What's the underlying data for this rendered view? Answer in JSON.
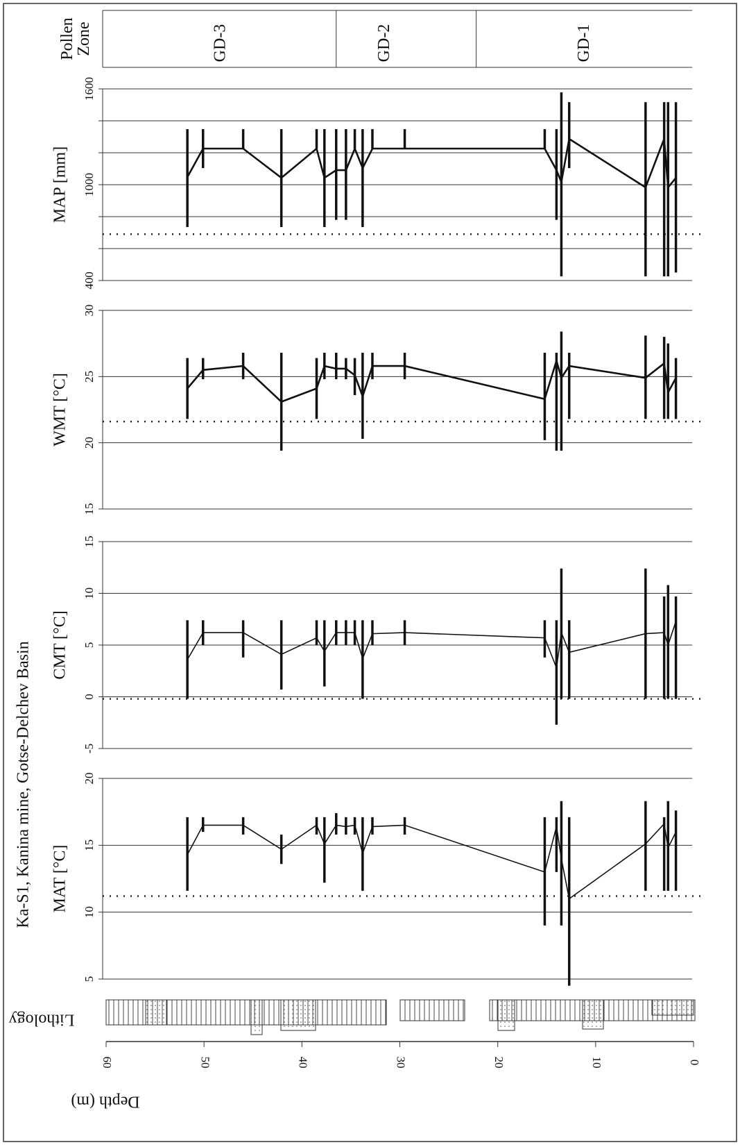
{
  "chart_data": {
    "type": "line",
    "title": "Ka-S1, Kanina mine, Gotse-Delchev Basin",
    "x_label": "Depth (m)",
    "xlim": [
      60,
      0
    ],
    "xticks": [
      60,
      50,
      40,
      30,
      20,
      10,
      0
    ],
    "zone_label": "Pollen Zone",
    "zones": [
      {
        "name": "GD-3",
        "from": 60,
        "to": 36.5
      },
      {
        "name": "GD-2",
        "from": 36.5,
        "to": 22.2
      },
      {
        "name": "GD-1",
        "from": 22.2,
        "to": 0
      }
    ],
    "lithology_label": "Lithology",
    "depth": [
      51.7,
      50.1,
      46.0,
      42.1,
      38.5,
      37.7,
      36.5,
      35.5,
      34.6,
      33.8,
      32.8,
      29.5,
      15.2,
      14.0,
      13.5,
      12.7,
      4.9,
      3.0,
      2.6,
      1.8
    ],
    "panels": [
      {
        "y_label": "MAP [mm]",
        "ylim": [
          400,
          1600
        ],
        "yticks": [
          400,
          1000,
          1600
        ],
        "minor_yticks": [
          600,
          800,
          1200,
          1400
        ],
        "threshold": 690,
        "line_width": 2.6,
        "values": [
          1048,
          1226,
          1226,
          1043,
          1226,
          1043,
          1091,
          1091,
          1226,
          1104,
          1226,
          1226,
          1226,
          1091,
          1017,
          1287,
          983,
          1287,
          983,
          1043
        ],
        "lower": [
          735,
          1104,
          1226,
          735,
          1226,
          735,
          780,
          780,
          1226,
          735,
          1226,
          1226,
          1226,
          780,
          426,
          1104,
          426,
          426,
          426,
          450
        ],
        "upper": [
          1348,
          1348,
          1348,
          1348,
          1348,
          1348,
          1348,
          1348,
          1348,
          1348,
          1348,
          1348,
          1348,
          1348,
          1578,
          1517,
          1517,
          1517,
          1517,
          1517
        ]
      },
      {
        "y_label": "WMT [°C]",
        "ylim": [
          15,
          30
        ],
        "yticks": [
          15,
          20,
          25,
          30
        ],
        "minor_yticks": [],
        "threshold": 21.6,
        "line_width": 2.6,
        "values": [
          24.1,
          25.5,
          25.8,
          23.1,
          24.1,
          25.8,
          25.6,
          25.6,
          25.1,
          23.5,
          25.8,
          25.8,
          23.3,
          26.2,
          24.9,
          25.8,
          24.9,
          26.0,
          23.8,
          24.9
        ],
        "lower": [
          21.8,
          24.8,
          24.8,
          19.4,
          21.8,
          24.8,
          24.8,
          24.8,
          23.6,
          20.3,
          24.8,
          24.8,
          20.2,
          19.4,
          19.4,
          21.8,
          21.8,
          21.8,
          21.8,
          21.8
        ],
        "upper": [
          26.4,
          26.4,
          26.8,
          26.8,
          26.4,
          26.8,
          26.8,
          26.4,
          26.4,
          26.8,
          26.8,
          26.8,
          26.8,
          26.8,
          28.4,
          26.8,
          28.1,
          28.0,
          27.5,
          26.4
        ]
      },
      {
        "y_label": "CMT [°C]",
        "ylim": [
          -5,
          15
        ],
        "yticks": [
          -5,
          0,
          5,
          10,
          15
        ],
        "minor_yticks": [],
        "threshold": -0.2,
        "line_width": 1.6,
        "values": [
          3.6,
          6.2,
          6.2,
          4.1,
          5.7,
          4.4,
          6.2,
          6.2,
          6.2,
          3.7,
          6.1,
          6.2,
          5.7,
          2.8,
          6.2,
          4.3,
          6.1,
          6.2,
          5.0,
          7.3
        ],
        "lower": [
          -0.2,
          5.0,
          3.8,
          0.7,
          5.0,
          1.0,
          5.0,
          5.0,
          5.0,
          -0.2,
          5.0,
          5.0,
          3.8,
          -2.7,
          -0.2,
          -0.2,
          -0.2,
          -0.2,
          -0.2,
          -0.2
        ],
        "upper": [
          7.4,
          7.4,
          7.4,
          7.4,
          7.4,
          7.4,
          7.4,
          7.4,
          7.4,
          7.4,
          7.4,
          7.4,
          7.4,
          7.4,
          12.4,
          7.4,
          12.4,
          9.7,
          10.8,
          9.7
        ]
      },
      {
        "y_label": "MAT [°C]",
        "ylim": [
          5,
          20
        ],
        "yticks": [
          5,
          10,
          15,
          20
        ],
        "minor_yticks": [],
        "threshold": 11.2,
        "line_width": 1.6,
        "values": [
          14.3,
          16.5,
          16.5,
          14.7,
          16.5,
          15.1,
          16.5,
          16.4,
          16.5,
          14.4,
          16.4,
          16.5,
          13.0,
          16.4,
          14.0,
          11.0,
          15.1,
          16.6,
          14.8,
          16.0
        ],
        "lower": [
          11.6,
          16.0,
          15.8,
          13.6,
          15.8,
          12.2,
          15.8,
          15.8,
          15.8,
          11.6,
          15.8,
          15.8,
          9.0,
          13.0,
          9.0,
          4.5,
          11.6,
          11.6,
          11.6,
          11.6
        ],
        "upper": [
          17.1,
          17.1,
          17.1,
          15.8,
          17.1,
          17.1,
          17.4,
          17.1,
          17.1,
          17.1,
          17.1,
          17.1,
          17.1,
          17.1,
          18.3,
          17.1,
          18.3,
          17.1,
          18.3,
          17.6
        ]
      }
    ]
  }
}
